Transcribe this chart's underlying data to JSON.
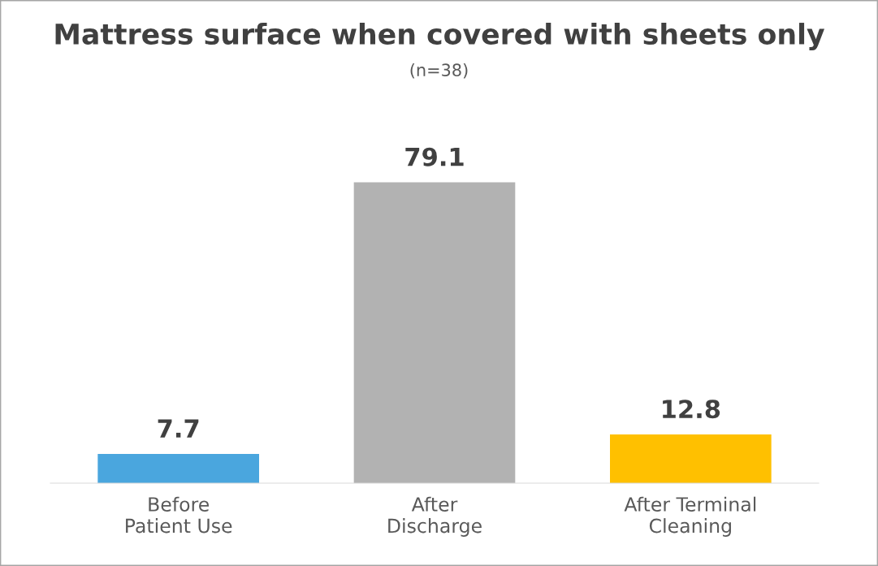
{
  "chart_data": {
    "type": "bar",
    "title": "Mattress surface when covered with sheets only",
    "subtitle": "(n=38)",
    "categories": [
      "Before\nPatient Use",
      "After\nDischarge",
      "After Terminal\nCleaning"
    ],
    "values": [
      7.7,
      79.1,
      12.8
    ],
    "colors": [
      "#4aa6de",
      "#b2b2b2",
      "#ffc000"
    ],
    "data_labels": true,
    "grid": false,
    "legend": false
  }
}
